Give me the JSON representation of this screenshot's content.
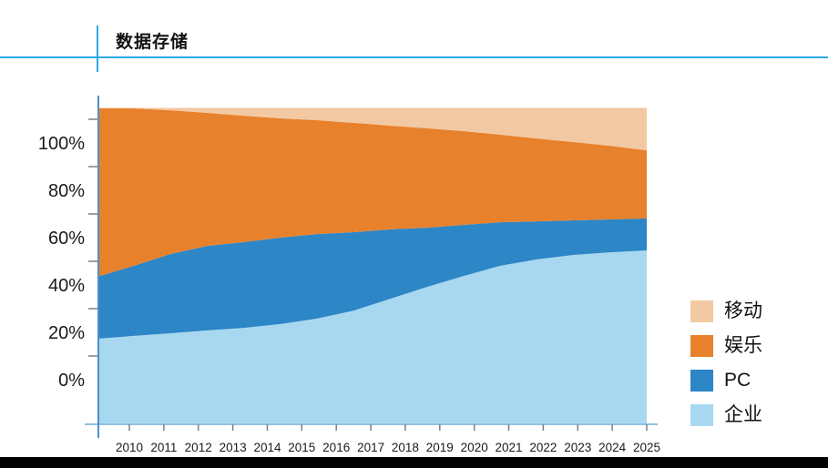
{
  "header": {
    "title": "数据存储",
    "accent_color": "#29abe2"
  },
  "footer": {
    "bar_color": "#000000"
  },
  "chart_data": {
    "type": "area",
    "stacked": true,
    "title": "数据存储",
    "xlabel": "",
    "ylabel": "",
    "grid": false,
    "legend_position": "right",
    "categories": [
      "2010",
      "2011",
      "2012",
      "2013",
      "2014",
      "2015",
      "2016",
      "2017",
      "2018",
      "2019",
      "2020",
      "2021",
      "2022",
      "2023",
      "2024",
      "2025"
    ],
    "series": [
      {
        "name": "企业",
        "key": "enterprise",
        "color": "#a8d8f0",
        "values": [
          17.3,
          18.5,
          19.6,
          20.8,
          21.9,
          23.5,
          25.8,
          29.2,
          34.2,
          39.2,
          43.8,
          48.1,
          50.8,
          52.7,
          53.8,
          54.6
        ]
      },
      {
        "name": "PC",
        "key": "pc",
        "color": "#2d86c6",
        "values": [
          26.2,
          29.6,
          33.5,
          35.7,
          36.2,
          36.5,
          35.7,
          33.1,
          29.3,
          25.0,
          21.6,
          18.4,
          16.1,
          14.6,
          13.9,
          13.5
        ]
      },
      {
        "name": "娱乐",
        "key": "entertainment",
        "color": "#e8812c",
        "values": [
          71.1,
          66.5,
          60.7,
          56.2,
          53.4,
          50.4,
          48.1,
          46.2,
          43.8,
          42.0,
          39.6,
          37.0,
          35.0,
          33.1,
          31.1,
          28.8
        ]
      },
      {
        "name": "移动",
        "key": "mobile",
        "color": "#f2c9a2",
        "values": [
          0.2,
          0.2,
          1.0,
          2.1,
          3.3,
          4.4,
          5.2,
          6.3,
          7.5,
          8.6,
          9.8,
          11.3,
          12.9,
          14.4,
          16.0,
          17.9
        ]
      }
    ],
    "y_ticks": [
      {
        "label": "100%",
        "value": 100
      },
      {
        "label": "80%",
        "value": 80
      },
      {
        "label": "60%",
        "value": 60
      },
      {
        "label": "40%",
        "value": 40
      },
      {
        "label": "20%",
        "value": 20
      },
      {
        "label": "0%",
        "value": 0
      }
    ],
    "ylim_visible": [
      -19,
      115
    ],
    "axis_colors": {
      "y_axis_line": "#4e8fca",
      "x_axis_line": "#92bfe0",
      "tick": "#7f7f7f"
    }
  }
}
